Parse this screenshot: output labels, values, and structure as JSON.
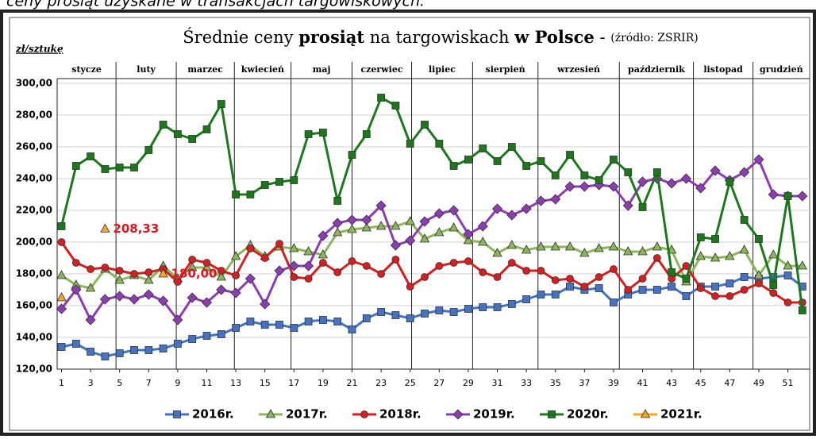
{
  "header_text": "ceny prosiąt uzyskane w transakcjach targowiskowych.",
  "chart_data": {
    "type": "line",
    "title": [
      "Średnie ceny ",
      "prosiąt",
      " na targowiskach ",
      "w Polsce",
      " - "
    ],
    "source": "(źródło: ZSRIR)",
    "y_label": "zł/sztukę",
    "months": [
      "stycze",
      "luty",
      "marzec",
      "kwiecień",
      "maj",
      "czerwiec",
      "lipiec",
      "sierpień",
      "wrzesień",
      "październik",
      "listopad",
      "grudzień"
    ],
    "x": [
      1,
      2,
      3,
      4,
      5,
      6,
      7,
      8,
      9,
      10,
      11,
      12,
      13,
      14,
      15,
      16,
      17,
      18,
      19,
      20,
      21,
      22,
      23,
      24,
      25,
      26,
      27,
      28,
      29,
      30,
      31,
      32,
      33,
      34,
      35,
      36,
      37,
      38,
      39,
      40,
      41,
      42,
      43,
      44,
      45,
      46,
      47,
      48,
      49,
      50,
      51,
      52
    ],
    "xlim": [
      0.7,
      52.5
    ],
    "xticks": [
      1,
      3,
      5,
      7,
      9,
      11,
      13,
      15,
      17,
      19,
      21,
      23,
      25,
      27,
      29,
      31,
      33,
      35,
      37,
      39,
      41,
      43,
      45,
      47,
      49,
      51
    ],
    "ylim": [
      120,
      300
    ],
    "yticks": [
      {
        "value": 120,
        "label": "120,00"
      },
      {
        "value": 140,
        "label": "140,00"
      },
      {
        "value": 160,
        "label": "160,00"
      },
      {
        "value": 180,
        "label": "180,00"
      },
      {
        "value": 200,
        "label": "200,00"
      },
      {
        "value": 220,
        "label": "220,00"
      },
      {
        "value": 240,
        "label": "240,00"
      },
      {
        "value": 260,
        "label": "260,00"
      },
      {
        "value": 280,
        "label": "280,00"
      },
      {
        "value": 300,
        "label": "300,00"
      }
    ],
    "grid": true,
    "legend": "bottom",
    "series": [
      {
        "name": "2016r.",
        "color": "#4472c4",
        "marker": "square",
        "values": [
          134,
          136,
          131,
          128,
          130,
          132,
          132,
          133,
          136,
          139,
          141,
          142,
          146,
          150,
          148,
          148,
          146,
          150,
          151,
          150,
          145,
          152,
          156,
          154,
          152,
          155,
          157,
          156,
          158,
          159,
          159,
          161,
          164,
          167,
          167,
          172,
          170,
          171,
          162,
          167,
          170,
          170,
          172,
          166,
          172,
          172,
          174,
          178,
          177,
          178,
          179,
          172
        ]
      },
      {
        "name": "2017r.",
        "color": "#8cb65a",
        "marker": "triangle",
        "values": [
          179,
          173,
          171,
          183,
          176,
          179,
          176,
          185,
          177,
          184,
          184,
          178,
          191,
          198,
          191,
          197,
          196,
          194,
          192,
          206,
          208,
          209,
          210,
          210,
          213,
          202,
          206,
          209,
          201,
          200,
          193,
          198,
          195,
          197,
          197,
          197,
          193,
          196,
          197,
          194,
          194,
          197,
          195,
          175,
          191,
          190,
          191,
          195,
          179,
          192,
          185,
          185
        ]
      },
      {
        "name": "2018r.",
        "color": "#d81e1e",
        "marker": "circle",
        "values": [
          200,
          187,
          183,
          184,
          182,
          180,
          181,
          183,
          175,
          189,
          187,
          182,
          179,
          196,
          190,
          199,
          178,
          177,
          187,
          181,
          188,
          185,
          180,
          189,
          172,
          178,
          185,
          187,
          188,
          181,
          178,
          187,
          182,
          182,
          176,
          177,
          172,
          178,
          183,
          170,
          177,
          190,
          177,
          185,
          171,
          166,
          166,
          170,
          174,
          168,
          162,
          162
        ]
      },
      {
        "name": "2019r.",
        "color": "#8e3cb4",
        "marker": "diamond",
        "values": [
          158,
          170,
          151,
          164,
          166,
          164,
          167,
          163,
          151,
          165,
          162,
          170,
          168,
          177,
          161,
          182,
          185,
          185,
          204,
          212,
          214,
          214,
          223,
          198,
          201,
          213,
          218,
          220,
          205,
          210,
          221,
          217,
          221,
          226,
          227,
          235,
          235,
          236,
          235,
          223,
          238,
          240,
          237,
          240,
          234,
          245,
          239,
          244,
          252,
          230,
          229,
          229
        ]
      },
      {
        "name": "2020r.",
        "color": "#1a7a1a",
        "marker": "square",
        "values": [
          210,
          248,
          254,
          246,
          247,
          247,
          258,
          274,
          268,
          265,
          271,
          287,
          230,
          230,
          236,
          238,
          239,
          268,
          269,
          226,
          255,
          268,
          291,
          286,
          262,
          274,
          262,
          248,
          252,
          259,
          251,
          260,
          248,
          251,
          242,
          255,
          242,
          239,
          252,
          244,
          222,
          244,
          181,
          177,
          203,
          202,
          238,
          214,
          202,
          173,
          229,
          157
        ]
      },
      {
        "name": "2021r.",
        "color": "#f5a623",
        "marker": "triangle",
        "values": [
          165,
          null,
          null,
          208.33,
          null,
          null,
          null,
          180,
          null,
          null,
          null,
          null,
          null,
          null,
          null,
          null,
          null,
          null,
          null,
          null,
          null,
          null,
          null,
          null,
          null,
          null,
          null,
          null,
          null,
          null,
          null,
          null,
          null,
          null,
          null,
          null,
          null,
          null,
          null,
          null,
          null,
          null,
          null,
          null,
          null,
          null,
          null,
          null,
          null,
          null,
          null,
          null
        ],
        "value_labels": [
          null,
          null,
          null,
          "208,33",
          null,
          null,
          null,
          "180,00",
          null,
          null,
          null,
          null,
          null,
          null,
          null,
          null,
          null,
          null,
          null,
          null,
          null,
          null,
          null,
          null,
          null,
          null,
          null,
          null,
          null,
          null,
          null,
          null,
          null,
          null,
          null,
          null,
          null,
          null,
          null,
          null,
          null,
          null,
          null,
          null,
          null,
          null,
          null,
          null,
          null,
          null,
          null,
          null
        ]
      }
    ]
  }
}
